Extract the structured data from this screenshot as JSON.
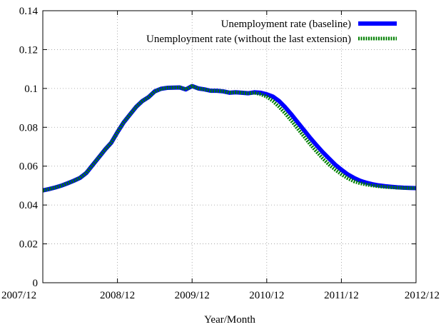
{
  "chart_data": {
    "type": "line",
    "title": "",
    "xlabel": "Year/Month",
    "ylabel": "",
    "x_tick_labels": [
      "2007/12",
      "2008/12",
      "2009/12",
      "2010/12",
      "2011/12",
      "2012/12"
    ],
    "x_tick_values": [
      2007.917,
      2008.917,
      2009.917,
      2010.917,
      2011.917,
      2012.917
    ],
    "xlim": [
      2007.917,
      2012.917
    ],
    "y_tick_labels": [
      "0",
      "0.02",
      "0.04",
      "0.06",
      "0.08",
      "0.1",
      "0.12",
      "0.14"
    ],
    "y_tick_values": [
      0,
      0.02,
      0.04,
      0.06,
      0.08,
      0.1,
      0.12,
      0.14
    ],
    "ylim": [
      0,
      0.14
    ],
    "grid": true,
    "legend_position": "top-right",
    "series": [
      {
        "name": "Unemployment rate (baseline)",
        "color": "#0000ff",
        "style": "solid",
        "points": [
          [
            2007.917,
            0.0475
          ],
          [
            2008.0,
            0.0482
          ],
          [
            2008.083,
            0.049
          ],
          [
            2008.167,
            0.05
          ],
          [
            2008.25,
            0.0512
          ],
          [
            2008.333,
            0.0525
          ],
          [
            2008.417,
            0.054
          ],
          [
            2008.5,
            0.0565
          ],
          [
            2008.583,
            0.0605
          ],
          [
            2008.667,
            0.0645
          ],
          [
            2008.75,
            0.0685
          ],
          [
            2008.833,
            0.072
          ],
          [
            2008.917,
            0.0775
          ],
          [
            2009.0,
            0.0825
          ],
          [
            2009.083,
            0.0865
          ],
          [
            2009.167,
            0.0905
          ],
          [
            2009.25,
            0.0935
          ],
          [
            2009.333,
            0.0955
          ],
          [
            2009.417,
            0.0985
          ],
          [
            2009.5,
            0.0998
          ],
          [
            2009.583,
            0.1003
          ],
          [
            2009.667,
            0.1004
          ],
          [
            2009.75,
            0.1005
          ],
          [
            2009.833,
            0.0995
          ],
          [
            2009.917,
            0.1012
          ],
          [
            2010.0,
            0.1
          ],
          [
            2010.083,
            0.0995
          ],
          [
            2010.167,
            0.0988
          ],
          [
            2010.25,
            0.0988
          ],
          [
            2010.333,
            0.0985
          ],
          [
            2010.417,
            0.0978
          ],
          [
            2010.5,
            0.098
          ],
          [
            2010.583,
            0.0978
          ],
          [
            2010.667,
            0.0975
          ],
          [
            2010.75,
            0.098
          ],
          [
            2010.833,
            0.0978
          ],
          [
            2010.917,
            0.097
          ],
          [
            2011.0,
            0.0958
          ],
          [
            2011.083,
            0.0935
          ],
          [
            2011.167,
            0.0902
          ],
          [
            2011.25,
            0.0865
          ],
          [
            2011.333,
            0.0825
          ],
          [
            2011.417,
            0.0785
          ],
          [
            2011.5,
            0.0745
          ],
          [
            2011.583,
            0.0708
          ],
          [
            2011.667,
            0.0672
          ],
          [
            2011.75,
            0.064
          ],
          [
            2011.833,
            0.0608
          ],
          [
            2011.917,
            0.0582
          ],
          [
            2012.0,
            0.0558
          ],
          [
            2012.083,
            0.054
          ],
          [
            2012.167,
            0.0525
          ],
          [
            2012.25,
            0.0515
          ],
          [
            2012.333,
            0.0507
          ],
          [
            2012.417,
            0.0501
          ],
          [
            2012.5,
            0.0497
          ],
          [
            2012.583,
            0.0494
          ],
          [
            2012.667,
            0.0491
          ],
          [
            2012.75,
            0.0489
          ],
          [
            2012.833,
            0.0488
          ],
          [
            2012.917,
            0.0487
          ]
        ]
      },
      {
        "name": "Unemployment rate (without the last extension)",
        "color": "#008000",
        "style": "dotted",
        "points": [
          [
            2007.917,
            0.0475
          ],
          [
            2008.0,
            0.0482
          ],
          [
            2008.083,
            0.049
          ],
          [
            2008.167,
            0.05
          ],
          [
            2008.25,
            0.0512
          ],
          [
            2008.333,
            0.0525
          ],
          [
            2008.417,
            0.054
          ],
          [
            2008.5,
            0.0565
          ],
          [
            2008.583,
            0.0605
          ],
          [
            2008.667,
            0.0645
          ],
          [
            2008.75,
            0.0685
          ],
          [
            2008.833,
            0.072
          ],
          [
            2008.917,
            0.0775
          ],
          [
            2009.0,
            0.0825
          ],
          [
            2009.083,
            0.0865
          ],
          [
            2009.167,
            0.0905
          ],
          [
            2009.25,
            0.0935
          ],
          [
            2009.333,
            0.0955
          ],
          [
            2009.417,
            0.0985
          ],
          [
            2009.5,
            0.0998
          ],
          [
            2009.583,
            0.1003
          ],
          [
            2009.667,
            0.1004
          ],
          [
            2009.75,
            0.1005
          ],
          [
            2009.833,
            0.0995
          ],
          [
            2009.917,
            0.1012
          ],
          [
            2010.0,
            0.1
          ],
          [
            2010.083,
            0.0995
          ],
          [
            2010.167,
            0.0988
          ],
          [
            2010.25,
            0.0988
          ],
          [
            2010.333,
            0.0985
          ],
          [
            2010.417,
            0.0978
          ],
          [
            2010.5,
            0.098
          ],
          [
            2010.583,
            0.0978
          ],
          [
            2010.667,
            0.0975
          ],
          [
            2010.75,
            0.0978
          ],
          [
            2010.833,
            0.097
          ],
          [
            2010.917,
            0.0958
          ],
          [
            2011.0,
            0.0935
          ],
          [
            2011.083,
            0.0905
          ],
          [
            2011.167,
            0.087
          ],
          [
            2011.25,
            0.0832
          ],
          [
            2011.333,
            0.0792
          ],
          [
            2011.417,
            0.0752
          ],
          [
            2011.5,
            0.0712
          ],
          [
            2011.583,
            0.0675
          ],
          [
            2011.667,
            0.064
          ],
          [
            2011.75,
            0.0608
          ],
          [
            2011.833,
            0.0582
          ],
          [
            2011.917,
            0.0558
          ],
          [
            2012.0,
            0.0538
          ],
          [
            2012.083,
            0.0522
          ],
          [
            2012.167,
            0.0512
          ],
          [
            2012.25,
            0.0505
          ],
          [
            2012.333,
            0.05
          ],
          [
            2012.417,
            0.0496
          ],
          [
            2012.5,
            0.0493
          ],
          [
            2012.583,
            0.0491
          ],
          [
            2012.667,
            0.0489
          ],
          [
            2012.75,
            0.0488
          ],
          [
            2012.833,
            0.0487
          ],
          [
            2012.917,
            0.0487
          ]
        ]
      }
    ]
  }
}
